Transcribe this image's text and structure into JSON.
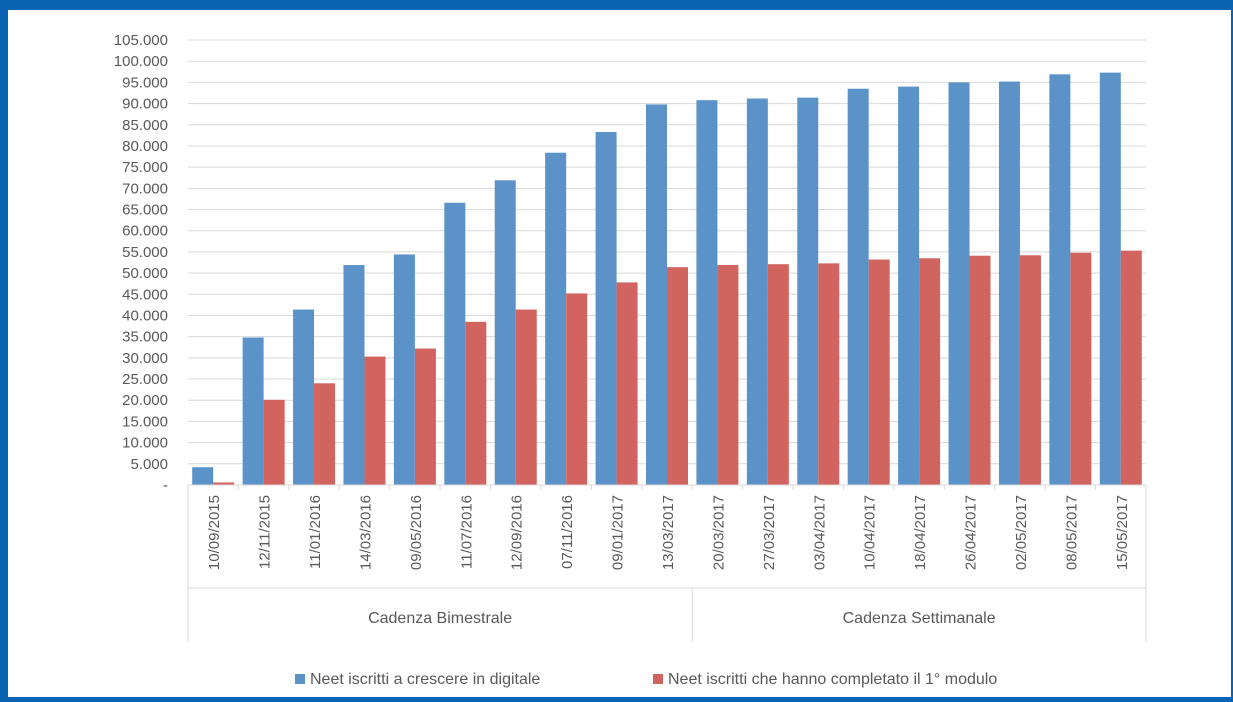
{
  "chart_data": {
    "type": "bar",
    "title": "",
    "xlabel": "",
    "ylabel": "",
    "ylim": [
      0,
      105000
    ],
    "ytick_step": 5000,
    "yticks": [
      "-",
      "5.000",
      "10.000",
      "15.000",
      "20.000",
      "25.000",
      "30.000",
      "35.000",
      "40.000",
      "45.000",
      "50.000",
      "55.000",
      "60.000",
      "65.000",
      "70.000",
      "75.000",
      "80.000",
      "85.000",
      "90.000",
      "95.000",
      "100.000",
      "105.000"
    ],
    "grid": true,
    "legend_position": "bottom",
    "categories": [
      "10/09/2015",
      "12/11/2015",
      "11/01/2016",
      "14/03/2016",
      "09/05/2016",
      "11/07/2016",
      "12/09/2016",
      "07/11/2016",
      "09/01/2017",
      "13/03/2017",
      "20/03/2017",
      "27/03/2017",
      "03/04/2017",
      "10/04/2017",
      "18/04/2017",
      "26/04/2017",
      "02/05/2017",
      "08/05/2017",
      "15/05/2017"
    ],
    "groups": [
      {
        "label": "Cadenza Bimestrale",
        "count": 10
      },
      {
        "label": "Cadenza Settimanale",
        "count": 9
      }
    ],
    "series": [
      {
        "name": "Neet iscritti a crescere in digitale",
        "color": "#5b93c9",
        "values": [
          4200,
          34800,
          41400,
          51900,
          54400,
          66600,
          71900,
          78400,
          83300,
          89800,
          90800,
          91200,
          91400,
          93500,
          94000,
          95000,
          95200,
          96900,
          97300
        ]
      },
      {
        "name": "Neet iscritti che hanno completato il 1° modulo",
        "color": "#d1645e",
        "values": [
          600,
          20100,
          24000,
          30300,
          32200,
          38500,
          41400,
          45200,
          47800,
          51400,
          51900,
          52100,
          52300,
          53200,
          53500,
          54100,
          54200,
          54800,
          55300
        ]
      }
    ]
  }
}
